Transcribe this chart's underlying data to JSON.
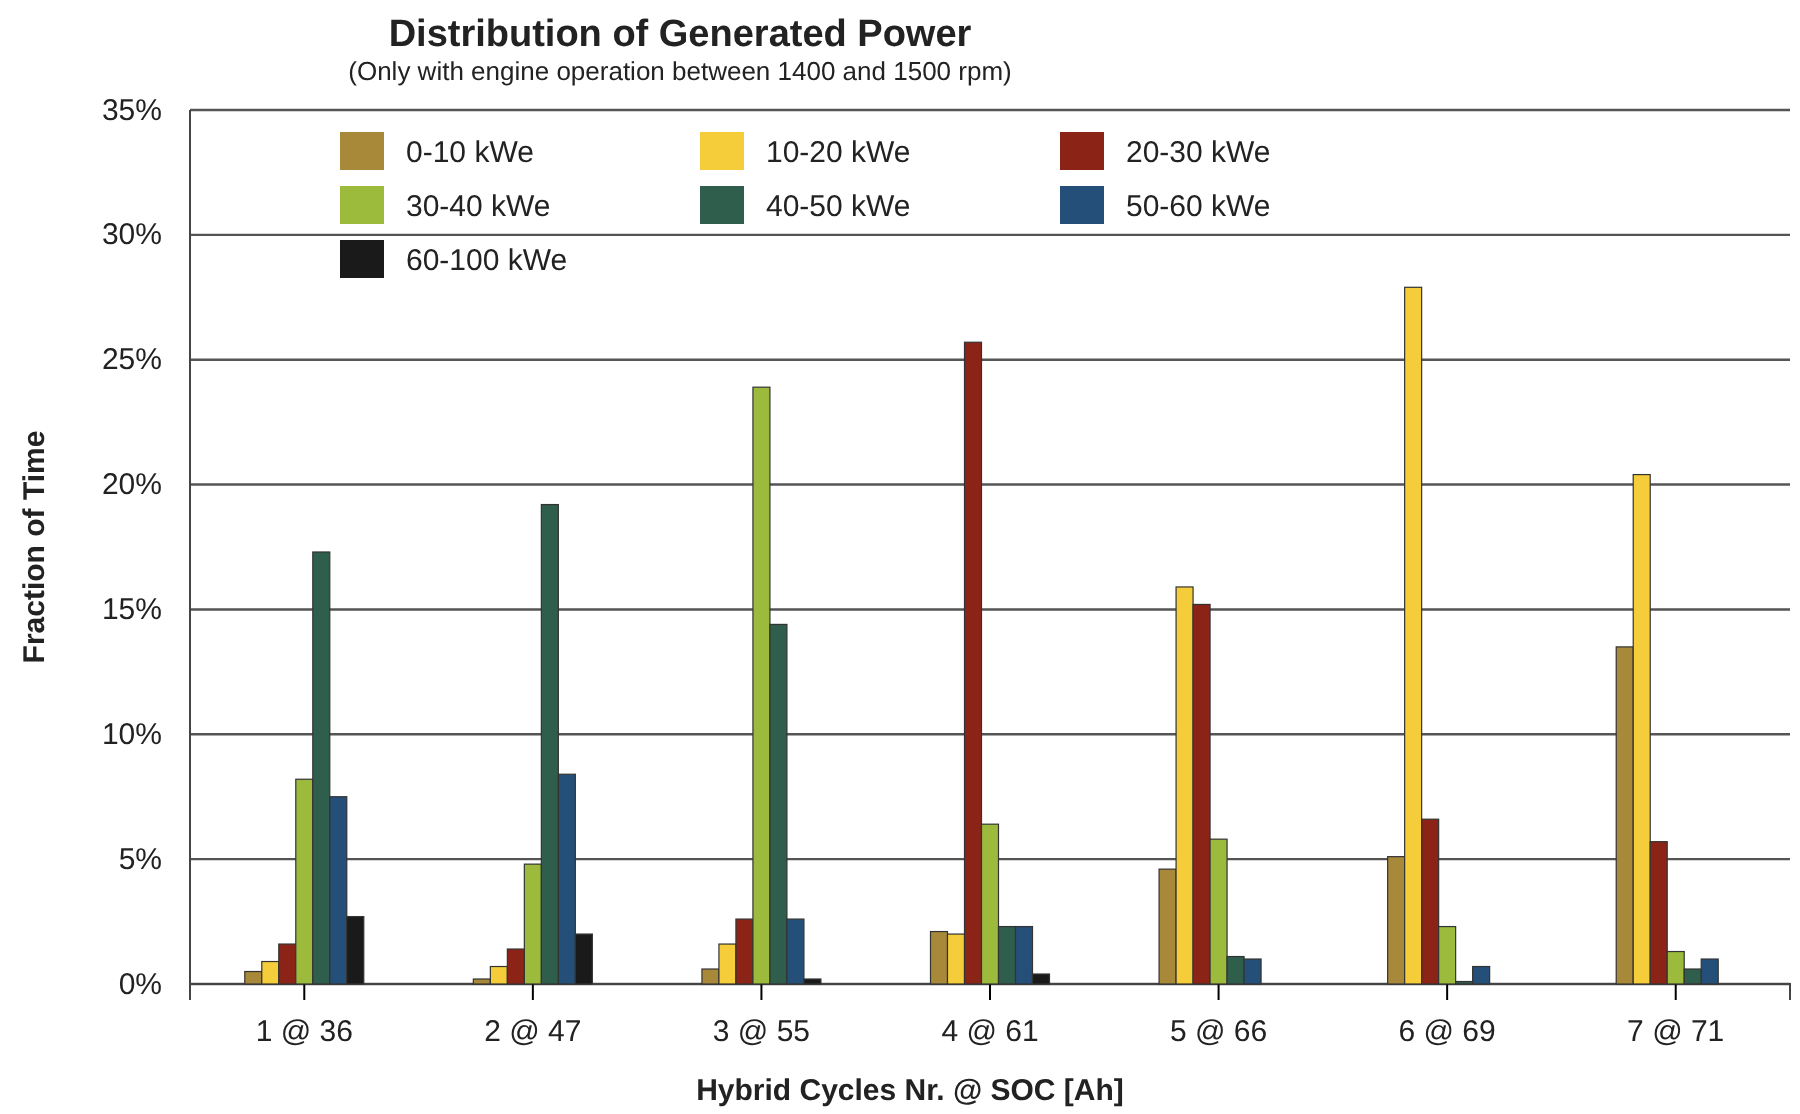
{
  "chart_data": {
    "type": "bar",
    "title": "Distribution of Generated Power",
    "subtitle": "(Only with engine operation between 1400 and 1500 rpm)",
    "xlabel": "Hybrid Cycles Nr. @ SOC [Ah]",
    "ylabel": "Fraction of Time",
    "categories": [
      "1 @ 36",
      "2 @ 47",
      "3 @ 55",
      "4 @ 61",
      "5 @ 66",
      "6 @ 69",
      "7 @ 71"
    ],
    "series": [
      {
        "name": "0-10 kWe",
        "color": "#a8893a",
        "values": [
          0.5,
          0.2,
          0.6,
          2.1,
          4.6,
          5.1,
          13.5
        ]
      },
      {
        "name": "10-20 kWe",
        "color": "#f5cd3a",
        "values": [
          0.9,
          0.7,
          1.6,
          2.0,
          15.9,
          27.9,
          20.4
        ]
      },
      {
        "name": "20-30 kWe",
        "color": "#8b2417",
        "values": [
          1.6,
          1.4,
          2.6,
          25.7,
          15.2,
          6.6,
          5.7
        ]
      },
      {
        "name": "30-40 kWe",
        "color": "#9cba3c",
        "values": [
          8.2,
          4.8,
          23.9,
          6.4,
          5.8,
          2.3,
          1.3
        ]
      },
      {
        "name": "40-50 kWe",
        "color": "#2f5e4c",
        "values": [
          17.3,
          19.2,
          14.4,
          2.3,
          1.1,
          0.1,
          0.6
        ]
      },
      {
        "name": "50-60 kWe",
        "color": "#244f78",
        "values": [
          7.5,
          8.4,
          2.6,
          2.3,
          1.0,
          0.7,
          1.0
        ]
      },
      {
        "name": "60-100 kWe",
        "color": "#1a1a1a",
        "values": [
          2.7,
          2.0,
          0.2,
          0.4,
          null,
          null,
          null
        ]
      }
    ],
    "ylim": [
      0,
      35
    ],
    "yticks": [
      {
        "value": 0,
        "label": "0%"
      },
      {
        "value": 5,
        "label": "5%"
      },
      {
        "value": 10,
        "label": "10%"
      },
      {
        "value": 15,
        "label": "15%"
      },
      {
        "value": 20,
        "label": "20%"
      },
      {
        "value": 25,
        "label": "25%"
      },
      {
        "value": 30,
        "label": "30%"
      },
      {
        "value": 35,
        "label": "35%"
      }
    ],
    "grid": "y",
    "legend": "top left"
  }
}
